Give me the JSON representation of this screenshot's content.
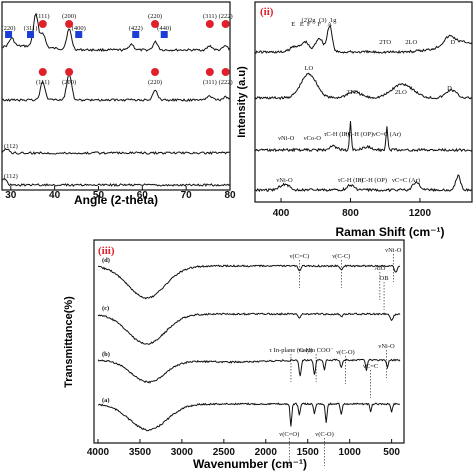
{
  "chart_data": [
    {
      "id": "i",
      "type": "line",
      "xlabel": "Angle (2-theta)",
      "ylabel": "",
      "xlim": [
        28,
        80
      ],
      "x_ticks": [
        "30",
        "40",
        "50",
        "60",
        "70",
        "80"
      ],
      "trace_labels": [
        "(112)",
        "(112)"
      ],
      "annotations": [
        {
          "text": "(220)",
          "x": 29.5,
          "marker": "square"
        },
        {
          "text": "(311)",
          "x": 34.5,
          "marker": "square"
        },
        {
          "text": "(111)",
          "x": 37.3,
          "marker": "circle"
        },
        {
          "text": "(200)",
          "x": 43.3,
          "marker": "circle"
        },
        {
          "text": "(400)",
          "x": 45.5,
          "marker": "square"
        },
        {
          "text": "(422)",
          "x": 58.5,
          "marker": "square"
        },
        {
          "text": "(220)",
          "x": 62.9,
          "marker": "circle"
        },
        {
          "text": "(440)",
          "x": 65.0,
          "marker": "square"
        },
        {
          "text": "(311)",
          "x": 75.4,
          "marker": "circle"
        },
        {
          "text": "(222)",
          "x": 79.0,
          "marker": "circle"
        }
      ],
      "lower_annotations": [
        {
          "text": "(111)",
          "x": 37.3
        },
        {
          "text": "(200)",
          "x": 43.3
        },
        {
          "text": "(220)",
          "x": 62.9
        },
        {
          "text": "(311)",
          "x": 75.4
        },
        {
          "text": "(222)",
          "x": 79.0
        }
      ],
      "colors": {
        "square": "#1a3fd6",
        "circle": "#e0202a"
      }
    },
    {
      "id": "ii",
      "panel_label": "(ii)",
      "type": "line",
      "xlabel": "Raman Shift (cm⁻¹)",
      "ylabel": "Intensity (a.u)",
      "xlim": [
        250,
        1500
      ],
      "x_ticks": [
        "400",
        "800",
        "1200"
      ],
      "annotations": [
        {
          "text": "E",
          "x": 470
        },
        {
          "text": "E",
          "x": 520
        },
        {
          "text": "(2)",
          "x": 540
        },
        {
          "text": "F",
          "x": 560
        },
        {
          "text": "2g",
          "x": 580
        },
        {
          "text": "F",
          "x": 620
        },
        {
          "text": "(3)",
          "x": 640
        },
        {
          "text": "A",
          "x": 680
        },
        {
          "text": "1g",
          "x": 700
        },
        {
          "text": "2TO",
          "x": 1000
        },
        {
          "text": "2LO",
          "x": 1150
        },
        {
          "text": "D",
          "x": 1390
        },
        {
          "text": "LO",
          "x": 560
        },
        {
          "text": "2TO",
          "x": 810
        },
        {
          "text": "2LO",
          "x": 1090
        },
        {
          "text": "D",
          "x": 1370
        },
        {
          "text": "νNi-O",
          "x": 430
        },
        {
          "text": "νCo-O",
          "x": 580
        },
        {
          "text": "τC-H (IP)",
          "x": 720
        },
        {
          "text": "τC-H (OP)",
          "x": 850
        },
        {
          "text": "νC=C (Ar)",
          "x": 1010
        },
        {
          "text": "νNi-O",
          "x": 420
        },
        {
          "text": "τC-H (IP)",
          "x": 800
        },
        {
          "text": "τC-H (OP)",
          "x": 930
        },
        {
          "text": "νC=C (Ar)",
          "x": 1120
        }
      ]
    },
    {
      "id": "iii",
      "panel_label": "(iii)",
      "type": "line",
      "xlabel": "Wavenumber (cm⁻¹)",
      "ylabel": "Transmittance(%)",
      "xlim": [
        4000,
        400
      ],
      "x_ticks": [
        "4000",
        "3500",
        "3000",
        "2500",
        "2000",
        "1500",
        "1000",
        "500"
      ],
      "series": [
        {
          "name": "(d)"
        },
        {
          "name": "(c)"
        },
        {
          "name": "(b)"
        },
        {
          "name": "(a)"
        }
      ],
      "annotations": [
        {
          "text": "ν(C=C)",
          "x": 1600
        },
        {
          "text": "ν(C-C)",
          "x": 1100
        },
        {
          "text": "νNi-O",
          "x": 480
        },
        {
          "text": "AlO",
          "x": 640
        },
        {
          "text": "OB",
          "x": 590
        },
        {
          "text": "τ In-plane (C-H)",
          "x": 1700
        },
        {
          "text": "νasym COO⁻",
          "x": 1400
        },
        {
          "text": "ν(C-O)",
          "x": 1050
        },
        {
          "text": "νNi-O",
          "x": 560
        },
        {
          "text": "νC=C",
          "x": 750
        },
        {
          "text": "ν(C=O)",
          "x": 1720
        },
        {
          "text": "ν(C-O)",
          "x": 1300
        }
      ]
    }
  ]
}
